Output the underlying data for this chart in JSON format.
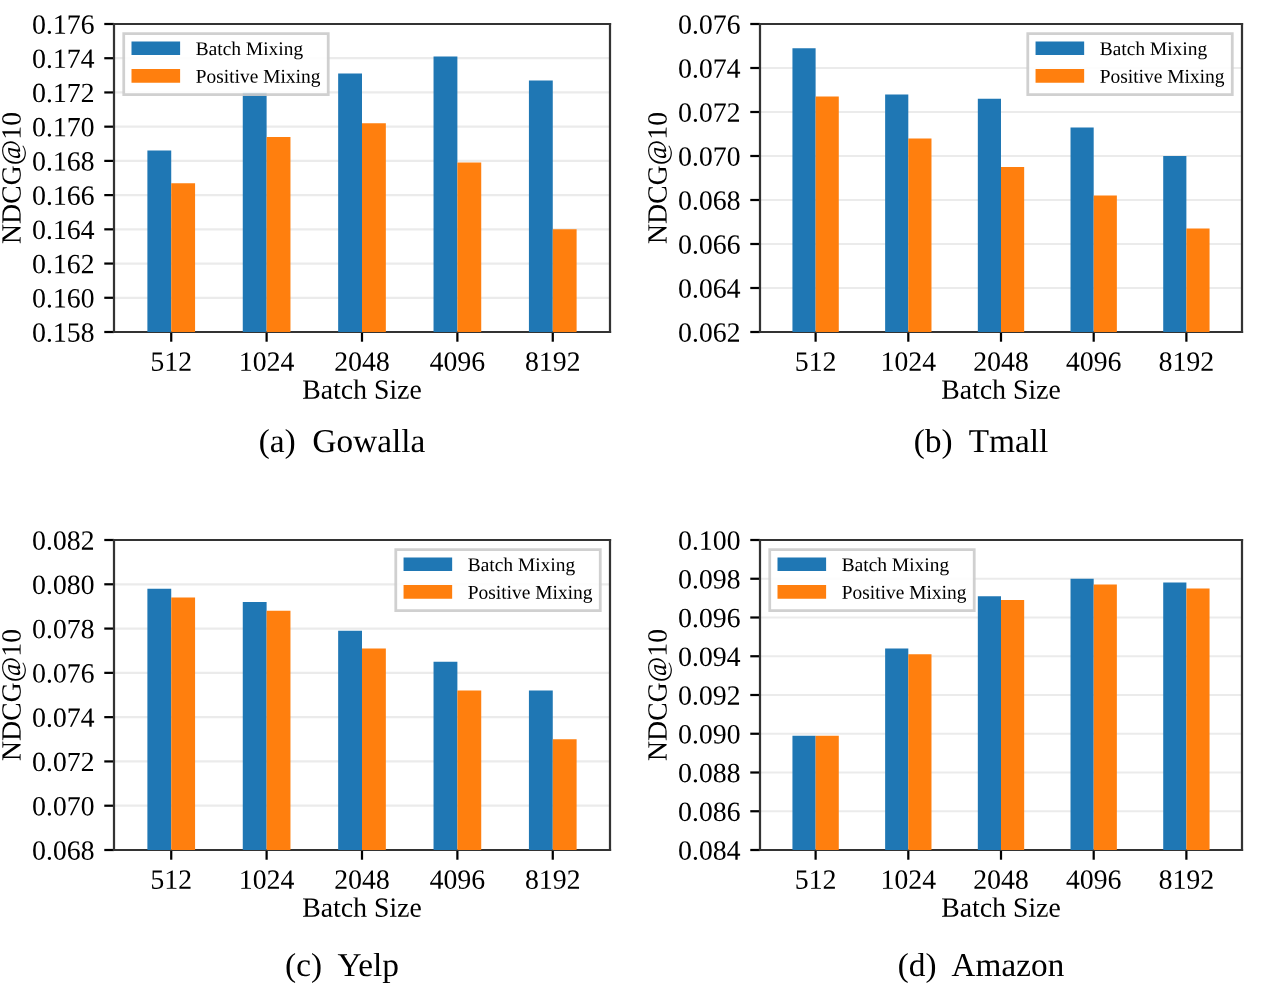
{
  "chart_data": [
    {
      "type": "bar",
      "xlabel": "Batch Size",
      "ylabel": "NDCG@10",
      "categories": [
        "512",
        "1024",
        "2048",
        "4096",
        "8192"
      ],
      "series": [
        {
          "name": "Batch Mixing",
          "color": "#1f77b4",
          "values": [
            0.1686,
            0.172,
            0.1731,
            0.1741,
            0.1727
          ]
        },
        {
          "name": "Positive Mixing",
          "color": "#ff7f0e",
          "values": [
            0.1667,
            0.1694,
            0.1702,
            0.1679,
            0.164
          ]
        }
      ],
      "ylim": [
        0.158,
        0.176
      ],
      "yticks": [
        {
          "value": 0.158,
          "label": "0.158"
        },
        {
          "value": 0.16,
          "label": "0.160"
        },
        {
          "value": 0.162,
          "label": "0.162"
        },
        {
          "value": 0.164,
          "label": "0.164"
        },
        {
          "value": 0.166,
          "label": "0.166"
        },
        {
          "value": 0.168,
          "label": "0.168"
        },
        {
          "value": 0.17,
          "label": "0.170"
        },
        {
          "value": 0.172,
          "label": "0.172"
        },
        {
          "value": 0.174,
          "label": "0.174"
        },
        {
          "value": 0.176,
          "label": "0.176"
        }
      ],
      "grid": "y",
      "legend": "top left",
      "annotations": [
        "(a)  Gowalla"
      ]
    },
    {
      "type": "bar",
      "xlabel": "Batch Size",
      "ylabel": "NDCG@10",
      "categories": [
        "512",
        "1024",
        "2048",
        "4096",
        "8192"
      ],
      "series": [
        {
          "name": "Batch Mixing",
          "color": "#1f77b4",
          "values": [
            0.0749,
            0.0728,
            0.0726,
            0.0713,
            0.07
          ]
        },
        {
          "name": "Positive Mixing",
          "color": "#ff7f0e",
          "values": [
            0.0727,
            0.0708,
            0.0695,
            0.0682,
            0.0667
          ]
        }
      ],
      "ylim": [
        0.062,
        0.076
      ],
      "yticks": [
        {
          "value": 0.062,
          "label": "0.062"
        },
        {
          "value": 0.064,
          "label": "0.064"
        },
        {
          "value": 0.066,
          "label": "0.066"
        },
        {
          "value": 0.068,
          "label": "0.068"
        },
        {
          "value": 0.07,
          "label": "0.070"
        },
        {
          "value": 0.072,
          "label": "0.072"
        },
        {
          "value": 0.074,
          "label": "0.074"
        },
        {
          "value": 0.076,
          "label": "0.076"
        }
      ],
      "grid": "y",
      "legend": "top right",
      "annotations": [
        "(b)  Tmall"
      ]
    },
    {
      "type": "bar",
      "xlabel": "Batch Size",
      "ylabel": "NDCG@10",
      "categories": [
        "512",
        "1024",
        "2048",
        "4096",
        "8192"
      ],
      "series": [
        {
          "name": "Batch Mixing",
          "color": "#1f77b4",
          "values": [
            0.0798,
            0.0792,
            0.0779,
            0.0765,
            0.0752
          ]
        },
        {
          "name": "Positive Mixing",
          "color": "#ff7f0e",
          "values": [
            0.0794,
            0.0788,
            0.0771,
            0.0752,
            0.073
          ]
        }
      ],
      "ylim": [
        0.068,
        0.082
      ],
      "yticks": [
        {
          "value": 0.068,
          "label": "0.068"
        },
        {
          "value": 0.07,
          "label": "0.070"
        },
        {
          "value": 0.072,
          "label": "0.072"
        },
        {
          "value": 0.074,
          "label": "0.074"
        },
        {
          "value": 0.076,
          "label": "0.076"
        },
        {
          "value": 0.078,
          "label": "0.078"
        },
        {
          "value": 0.08,
          "label": "0.080"
        },
        {
          "value": 0.082,
          "label": "0.082"
        }
      ],
      "grid": "y",
      "legend": "top right",
      "annotations": [
        "(c)  Yelp"
      ]
    },
    {
      "type": "bar",
      "xlabel": "Batch Size",
      "ylabel": "NDCG@10",
      "categories": [
        "512",
        "1024",
        "2048",
        "4096",
        "8192"
      ],
      "series": [
        {
          "name": "Batch Mixing",
          "color": "#1f77b4",
          "values": [
            0.0899,
            0.0944,
            0.0971,
            0.098,
            0.0978
          ]
        },
        {
          "name": "Positive Mixing",
          "color": "#ff7f0e",
          "values": [
            0.0899,
            0.0941,
            0.0969,
            0.0977,
            0.0975
          ]
        }
      ],
      "ylim": [
        0.084,
        0.1
      ],
      "yticks": [
        {
          "value": 0.084,
          "label": "0.084"
        },
        {
          "value": 0.086,
          "label": "0.086"
        },
        {
          "value": 0.088,
          "label": "0.088"
        },
        {
          "value": 0.09,
          "label": "0.090"
        },
        {
          "value": 0.092,
          "label": "0.092"
        },
        {
          "value": 0.094,
          "label": "0.094"
        },
        {
          "value": 0.096,
          "label": "0.096"
        },
        {
          "value": 0.098,
          "label": "0.098"
        },
        {
          "value": 0.1,
          "label": "0.100"
        }
      ],
      "grid": "y",
      "legend": "top left",
      "annotations": [
        "(d)  Amazon"
      ]
    }
  ]
}
